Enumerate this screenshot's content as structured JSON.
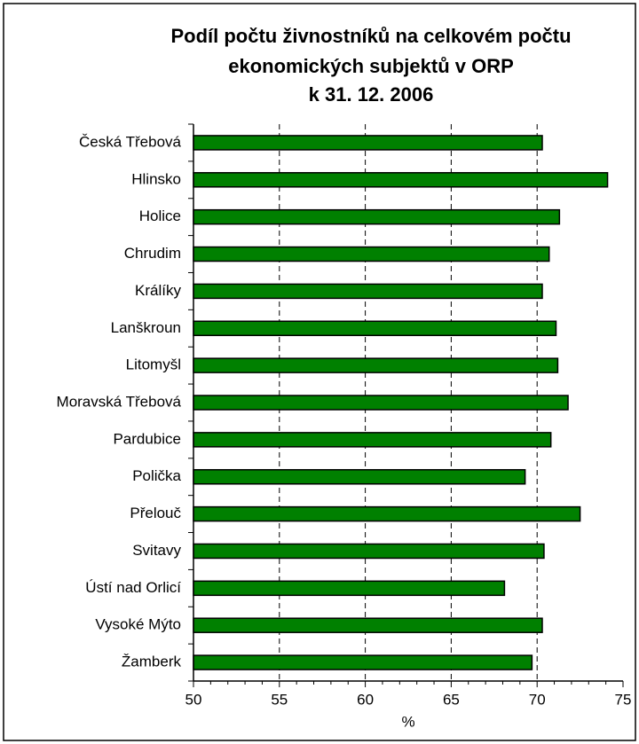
{
  "chart_data": {
    "type": "barh",
    "title": [
      "Podíl počtu živnostníků na celkovém počtu",
      "ekonomických subjektů v ORP",
      "k 31. 12. 2006"
    ],
    "categories": [
      "Česká Třebová",
      "Hlinsko",
      "Holice",
      "Chrudim",
      "Králíky",
      "Lanškroun",
      "Litomyšl",
      "Moravská Třebová",
      "Pardubice",
      "Polička",
      "Přelouč",
      "Svitavy",
      "Ústí nad Orlicí",
      "Vysoké Mýto",
      "Žamberk"
    ],
    "values": [
      70.3,
      74.1,
      71.3,
      70.7,
      70.3,
      71.1,
      71.2,
      71.8,
      70.8,
      69.3,
      72.5,
      70.4,
      68.1,
      70.3,
      69.7
    ],
    "color": "#008000",
    "xlabel": "%",
    "xlim": [
      50,
      75
    ],
    "xticks": [
      50,
      55,
      60,
      65,
      70,
      75
    ],
    "grid": true
  }
}
